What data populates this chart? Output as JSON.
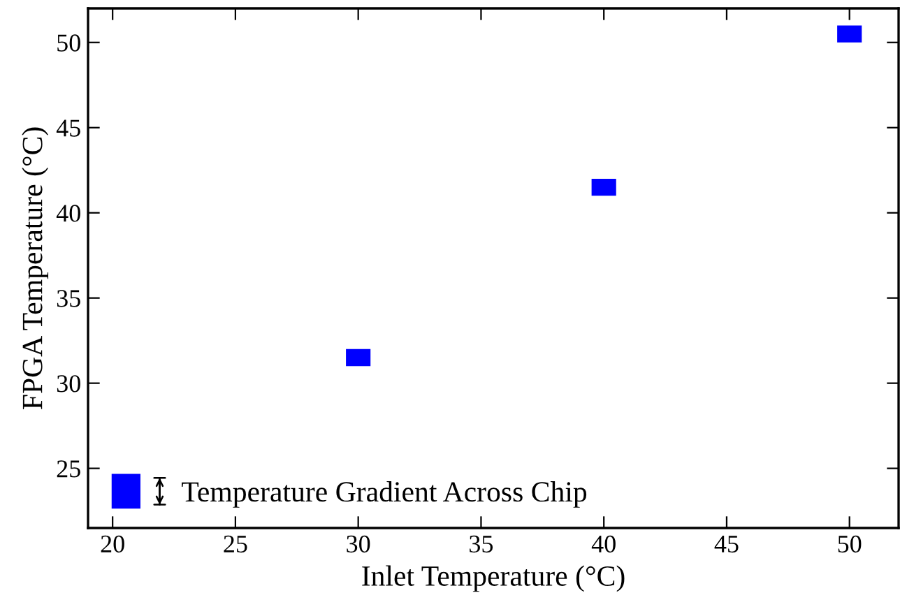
{
  "chart_data": {
    "type": "bar",
    "xlabel": "Inlet Temperature (°C)",
    "ylabel": "FPGA Temperature (°C)",
    "x": [
      30,
      40,
      50
    ],
    "series": [
      {
        "name": "Temperature Gradient Across Chip",
        "color": "#0000ff",
        "base": [
          31,
          41,
          50
        ],
        "values": [
          1,
          1,
          1
        ]
      }
    ],
    "xlim": [
      19,
      52
    ],
    "ylim": [
      21.5,
      52
    ],
    "xticks": [
      20,
      25,
      30,
      35,
      40,
      45,
      50
    ],
    "yticks": [
      25,
      30,
      35,
      40,
      45,
      50
    ],
    "grid": false,
    "legend": "bottom left"
  }
}
